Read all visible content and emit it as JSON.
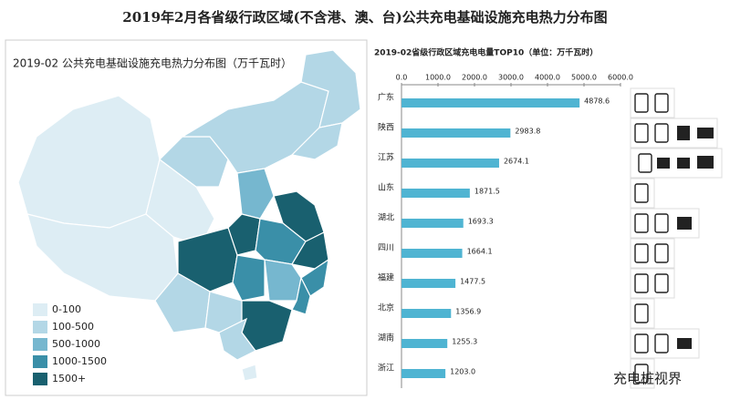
{
  "title": "2019年2月各省级行政区域(不含港、澳、台)公共充电基础设施充电热力分布图",
  "map": {
    "title": "2019-02 公共充电基础设施充电热力分布图（万千瓦时）",
    "legend": [
      {
        "label": "0-100",
        "color": "#ddedf4"
      },
      {
        "label": "100-500",
        "color": "#b3d7e6"
      },
      {
        "label": "500-1000",
        "color": "#76b7cf"
      },
      {
        "label": "1000-1500",
        "color": "#3a8fa8"
      },
      {
        "label": "1500+",
        "color": "#19606f"
      }
    ]
  },
  "chart_data": {
    "type": "bar",
    "orientation": "horizontal",
    "title": "2019-02省级行政区域充电电量TOP10（单位：万千瓦时）",
    "categories": [
      "广东",
      "陕西",
      "江苏",
      "山东",
      "湖北",
      "四川",
      "福建",
      "北京",
      "湖南",
      "浙江"
    ],
    "values": [
      4878.6,
      2983.8,
      2674.1,
      1871.5,
      1693.3,
      1664.1,
      1477.5,
      1356.9,
      1255.3,
      1203.0
    ],
    "value_labels": [
      "4878.6",
      "2983.8",
      "2674.1",
      "1871.5",
      "1693.3",
      "1664.1",
      "1477.5",
      "1356.9",
      "1255.3",
      "1203.0"
    ],
    "color": "#4fb4d2",
    "xlim": [
      0,
      6000
    ],
    "xticks": [
      {
        "value": 0,
        "label": "0.0"
      },
      {
        "value": 1000,
        "label": "1000.0"
      },
      {
        "value": 2000,
        "label": "2000.0"
      },
      {
        "value": 3000,
        "label": "3000.0"
      },
      {
        "value": 4000,
        "label": "4000.0"
      },
      {
        "value": 5000,
        "label": "5000.0"
      },
      {
        "value": 6000,
        "label": "6000.0"
      }
    ]
  },
  "watermark": "充电桩视界"
}
